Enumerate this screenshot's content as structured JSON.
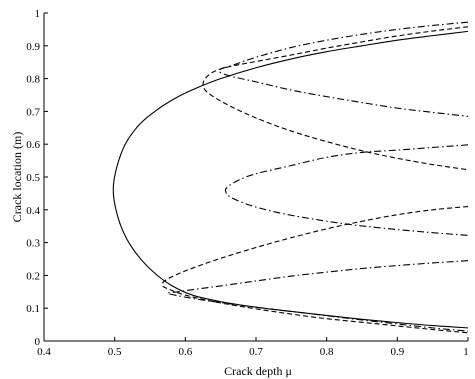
{
  "chart_data": {
    "type": "line",
    "title": "",
    "xlabel": "Crack depth  μ",
    "ylabel": "Crack location (m)",
    "xlim": [
      0.4,
      1.0
    ],
    "ylim": [
      0,
      1
    ],
    "x_ticks": [
      "0.4",
      "0.5",
      "0.6",
      "0.7",
      "0.8",
      "0.9",
      "1"
    ],
    "y_ticks": [
      "0",
      "0.1",
      "0.2",
      "0.3",
      "0.4",
      "0.5",
      "0.6",
      "0.7",
      "0.8",
      "0.9",
      "1"
    ],
    "grid": false,
    "legend": "none",
    "series": [
      {
        "style": "solid",
        "color": "#000000",
        "points": [
          [
            1.0,
            0.944
          ],
          [
            0.95,
            0.931
          ],
          [
            0.9,
            0.917
          ],
          [
            0.85,
            0.9
          ],
          [
            0.8,
            0.882
          ],
          [
            0.75,
            0.86
          ],
          [
            0.7,
            0.833
          ],
          [
            0.65,
            0.8
          ],
          [
            0.62,
            0.775
          ],
          [
            0.59,
            0.745
          ],
          [
            0.56,
            0.705
          ],
          [
            0.535,
            0.66
          ],
          [
            0.515,
            0.6
          ],
          [
            0.503,
            0.53
          ],
          [
            0.498,
            0.462
          ],
          [
            0.503,
            0.39
          ],
          [
            0.515,
            0.32
          ],
          [
            0.533,
            0.26
          ],
          [
            0.555,
            0.21
          ],
          [
            0.58,
            0.17
          ],
          [
            0.61,
            0.14
          ],
          [
            0.65,
            0.12
          ],
          [
            0.7,
            0.103
          ],
          [
            0.75,
            0.09
          ],
          [
            0.8,
            0.078
          ],
          [
            0.85,
            0.066
          ],
          [
            0.9,
            0.056
          ],
          [
            0.95,
            0.047
          ],
          [
            1.0,
            0.04
          ]
        ]
      },
      {
        "style": "dashed",
        "color": "#000000",
        "points": [
          [
            1.0,
            0.958
          ],
          [
            0.95,
            0.945
          ],
          [
            0.9,
            0.93
          ],
          [
            0.85,
            0.912
          ],
          [
            0.8,
            0.893
          ],
          [
            0.75,
            0.872
          ],
          [
            0.7,
            0.852
          ],
          [
            0.67,
            0.84
          ],
          [
            0.645,
            0.826
          ],
          [
            0.63,
            0.805
          ],
          [
            0.625,
            0.78
          ],
          [
            0.633,
            0.755
          ],
          [
            0.66,
            0.72
          ],
          [
            0.7,
            0.68
          ],
          [
            0.75,
            0.64
          ],
          [
            0.8,
            0.608
          ],
          [
            0.85,
            0.58
          ],
          [
            0.9,
            0.557
          ],
          [
            0.95,
            0.538
          ],
          [
            1.0,
            0.522
          ]
        ]
      },
      {
        "style": "dashed",
        "color": "#000000",
        "points": [
          [
            1.0,
            0.41
          ],
          [
            0.95,
            0.4
          ],
          [
            0.9,
            0.385
          ],
          [
            0.85,
            0.365
          ],
          [
            0.8,
            0.342
          ],
          [
            0.75,
            0.315
          ],
          [
            0.7,
            0.285
          ],
          [
            0.65,
            0.252
          ],
          [
            0.61,
            0.222
          ],
          [
            0.585,
            0.2
          ],
          [
            0.57,
            0.182
          ],
          [
            0.568,
            0.168
          ],
          [
            0.58,
            0.155
          ],
          [
            0.6,
            0.14
          ],
          [
            0.64,
            0.12
          ],
          [
            0.7,
            0.098
          ],
          [
            0.75,
            0.082
          ],
          [
            0.8,
            0.068
          ],
          [
            0.85,
            0.057
          ],
          [
            0.9,
            0.046
          ],
          [
            0.95,
            0.035
          ],
          [
            1.0,
            0.025
          ]
        ]
      },
      {
        "style": "dashdot",
        "color": "#000000",
        "points": [
          [
            1.0,
            0.972
          ],
          [
            0.95,
            0.962
          ],
          [
            0.9,
            0.95
          ],
          [
            0.85,
            0.935
          ],
          [
            0.8,
            0.917
          ],
          [
            0.75,
            0.895
          ],
          [
            0.7,
            0.865
          ],
          [
            0.67,
            0.843
          ],
          [
            0.648,
            0.826
          ],
          [
            0.66,
            0.81
          ],
          [
            0.7,
            0.79
          ],
          [
            0.75,
            0.765
          ],
          [
            0.8,
            0.745
          ],
          [
            0.85,
            0.727
          ],
          [
            0.9,
            0.71
          ],
          [
            0.95,
            0.697
          ],
          [
            1.0,
            0.685
          ]
        ]
      },
      {
        "style": "dashdot",
        "color": "#000000",
        "points": [
          [
            1.0,
            0.598
          ],
          [
            0.95,
            0.59
          ],
          [
            0.9,
            0.582
          ],
          [
            0.85,
            0.575
          ],
          [
            0.8,
            0.56
          ],
          [
            0.75,
            0.535
          ],
          [
            0.7,
            0.51
          ],
          [
            0.675,
            0.49
          ],
          [
            0.66,
            0.47
          ],
          [
            0.657,
            0.458
          ],
          [
            0.663,
            0.44
          ],
          [
            0.69,
            0.415
          ],
          [
            0.73,
            0.392
          ],
          [
            0.78,
            0.372
          ],
          [
            0.83,
            0.356
          ],
          [
            0.88,
            0.344
          ],
          [
            0.94,
            0.332
          ],
          [
            1.0,
            0.322
          ]
        ]
      },
      {
        "style": "dashdot",
        "color": "#000000",
        "points": [
          [
            1.0,
            0.245
          ],
          [
            0.95,
            0.238
          ],
          [
            0.9,
            0.23
          ],
          [
            0.85,
            0.221
          ],
          [
            0.8,
            0.21
          ],
          [
            0.75,
            0.198
          ],
          [
            0.7,
            0.183
          ],
          [
            0.65,
            0.168
          ],
          [
            0.615,
            0.158
          ],
          [
            0.59,
            0.15
          ],
          [
            0.575,
            0.146
          ],
          [
            0.585,
            0.14
          ],
          [
            0.61,
            0.13
          ],
          [
            0.65,
            0.117
          ],
          [
            0.7,
            0.103
          ],
          [
            0.75,
            0.09
          ],
          [
            0.8,
            0.077
          ],
          [
            0.85,
            0.064
          ],
          [
            0.9,
            0.052
          ],
          [
            0.95,
            0.04
          ],
          [
            1.0,
            0.03
          ]
        ]
      }
    ]
  }
}
